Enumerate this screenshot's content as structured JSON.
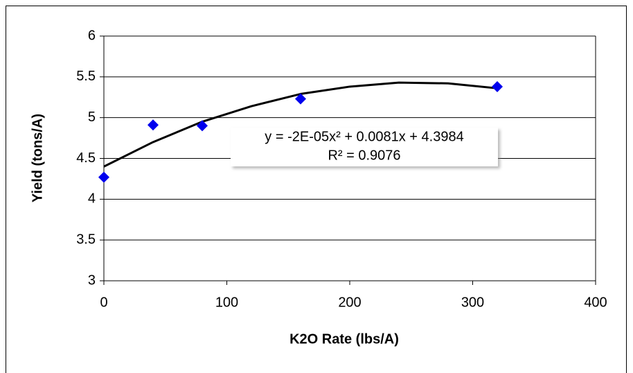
{
  "chart_data": {
    "type": "scatter",
    "x_label": "K2O Rate (lbs/A)",
    "y_label": "Yield (tons/A)",
    "series": [
      {
        "color": "#0000ee",
        "x": [
          0,
          40,
          80,
          160,
          320
        ],
        "values": [
          4.27,
          4.91,
          4.9,
          5.23,
          5.38
        ]
      }
    ],
    "trendline": {
      "color": "#000000",
      "x": [
        0,
        40,
        80,
        120,
        160,
        200,
        240,
        280,
        320
      ],
      "values": [
        4.4,
        4.7,
        4.95,
        5.14,
        5.29,
        5.38,
        5.43,
        5.42,
        5.36
      ],
      "equation": "y = -2E-05x² + 0.0081x + 4.3984",
      "r_squared": "R² = 0.9076"
    },
    "xlim": [
      0,
      400
    ],
    "xticks": [
      0,
      100,
      200,
      300,
      400
    ],
    "ylim": [
      3,
      6
    ],
    "yticks": [
      3,
      3.5,
      4,
      4.5,
      5,
      5.5,
      6
    ],
    "grid": true
  }
}
